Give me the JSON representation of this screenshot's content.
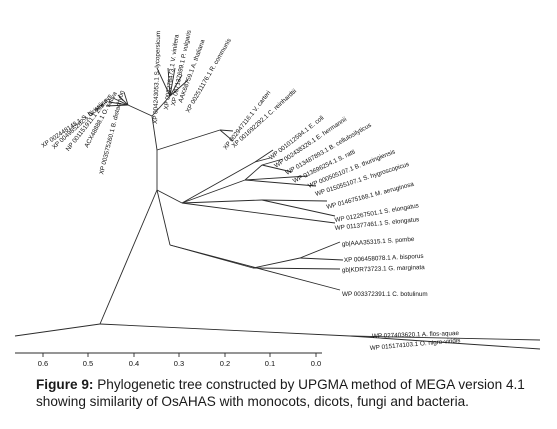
{
  "figure": {
    "caption_label": "Figure 9:",
    "caption_text": "Phylogenetic tree constructed by UPGMA method of MEGA version 4.1 showing similarity of OsAHAS with monocots, dicots, fungi and bacteria."
  },
  "axis": {
    "ticks": [
      "0.6",
      "0.5",
      "0.4",
      "0.3",
      "0.2",
      "0.1",
      "0.0"
    ]
  },
  "leaves": {
    "s_bicolor": "XP 002448148.1 S. bicolor",
    "s_italica": "XP 004985262.1 S. italica",
    "z_mays": "NP 001151911.1 Z. mays",
    "o_sativa": "ACX48888.1 O. sativa",
    "b_distachyon": "XP 003575260.1 B. distachyon",
    "s_lycopersicum": "XP 004243053.1 S. lycopersicum",
    "v_vinifera": "XP 002278473.1 V. vinifera",
    "p_vulgaris": "XP 007137699.1 P. vulgaris",
    "a_thaliana": "AAK68759.1 A. thaliana",
    "r_communis": "XP 002511176.1 R. communis",
    "v_carteri": "XP 002947116.1 V. carteri",
    "c_reinhardtii": "XP 001692292.1 C. reinhardtii",
    "e_coli": "WP 001012594.1 E. coli",
    "b_hermannii": "WP 002438326.1 E. hermannii",
    "b_cellulosilyticus": "WP 013487893.1 B. cellulosilyticus",
    "s_ratti": "WP 013696254.1 S. ratti",
    "b_thuringiensis": "WP 000505107.1 B. thuringiensis",
    "s_hygroscopicus": "WP 015055107.1 S. hygroscopicus",
    "m_aeruginosa": "WP 014675168.1 M. aeruginosa",
    "s_elongatus": "WP 012267501.1 S. elongatus",
    "s_elongatus2": "WP 011377461.1 S. elongatus",
    "s_pombe": "gb|AAA35315.1 S. pombe",
    "a_bisporus": "XP 006458078.1 A. bisporus",
    "g_marginata": "gb|KDR73723.1 G. marginata",
    "c_botulinum": "WP 003372391.1 C. botulinum",
    "a_flos_aquae": "WP 027403620.1 A. flos-aquae",
    "o_nigro_viridis": "WP 015174103.1 O. nigro-viridis"
  }
}
